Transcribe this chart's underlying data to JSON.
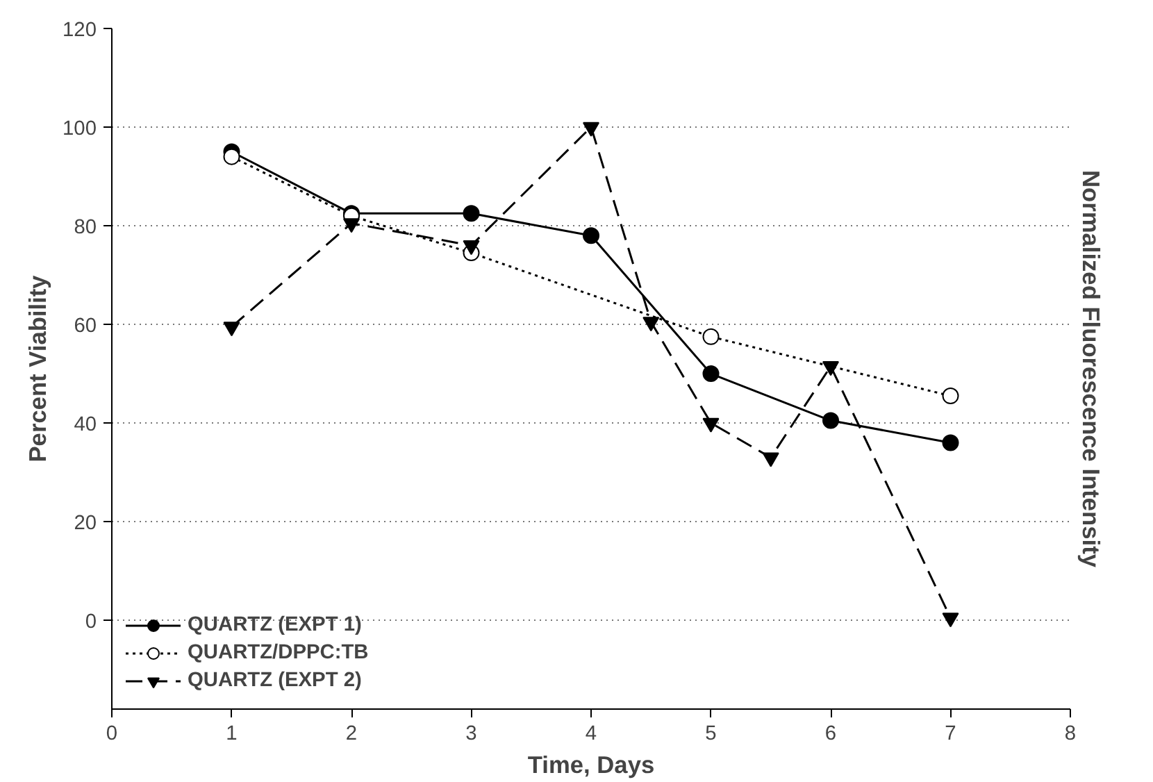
{
  "chart_data": {
    "type": "line",
    "xlabel": "Time, Days",
    "ylabel": "Percent Viability",
    "y2label": "Normalized Fluorescence Intensity",
    "xlim": [
      0,
      8
    ],
    "xticks": [
      0,
      1,
      2,
      3,
      4,
      5,
      6,
      7,
      8
    ],
    "ylim": [
      -18,
      120
    ],
    "yticks": [
      0,
      20,
      40,
      60,
      80,
      100,
      120
    ],
    "grid": "y",
    "legend": "bottom left",
    "series": [
      {
        "name": "QUARTZ (EXPT 1)",
        "color": "#000000",
        "marker": "circle",
        "line_style": "solid",
        "x": [
          1,
          2,
          3,
          4,
          5,
          6,
          7
        ],
        "values": [
          95,
          82.5,
          82.5,
          78,
          50,
          40.5,
          36
        ]
      },
      {
        "name": "QUARTZ/DPPC:TB",
        "color": "#000000",
        "marker": "circle",
        "line_style": "dotted",
        "x": [
          1,
          2,
          3,
          5,
          7
        ],
        "values": [
          94,
          82,
          74.5,
          57.5,
          45.5
        ]
      },
      {
        "name": "QUARTZ (EXPT 2)",
        "color": "#000000",
        "marker": "triangle",
        "line_style": "dashed",
        "x": [
          1,
          2,
          3,
          4,
          4.5,
          5,
          5.5,
          6,
          7
        ],
        "values": [
          59.5,
          80.5,
          76,
          100,
          60.5,
          40,
          33,
          51.5,
          0.5
        ]
      }
    ]
  }
}
